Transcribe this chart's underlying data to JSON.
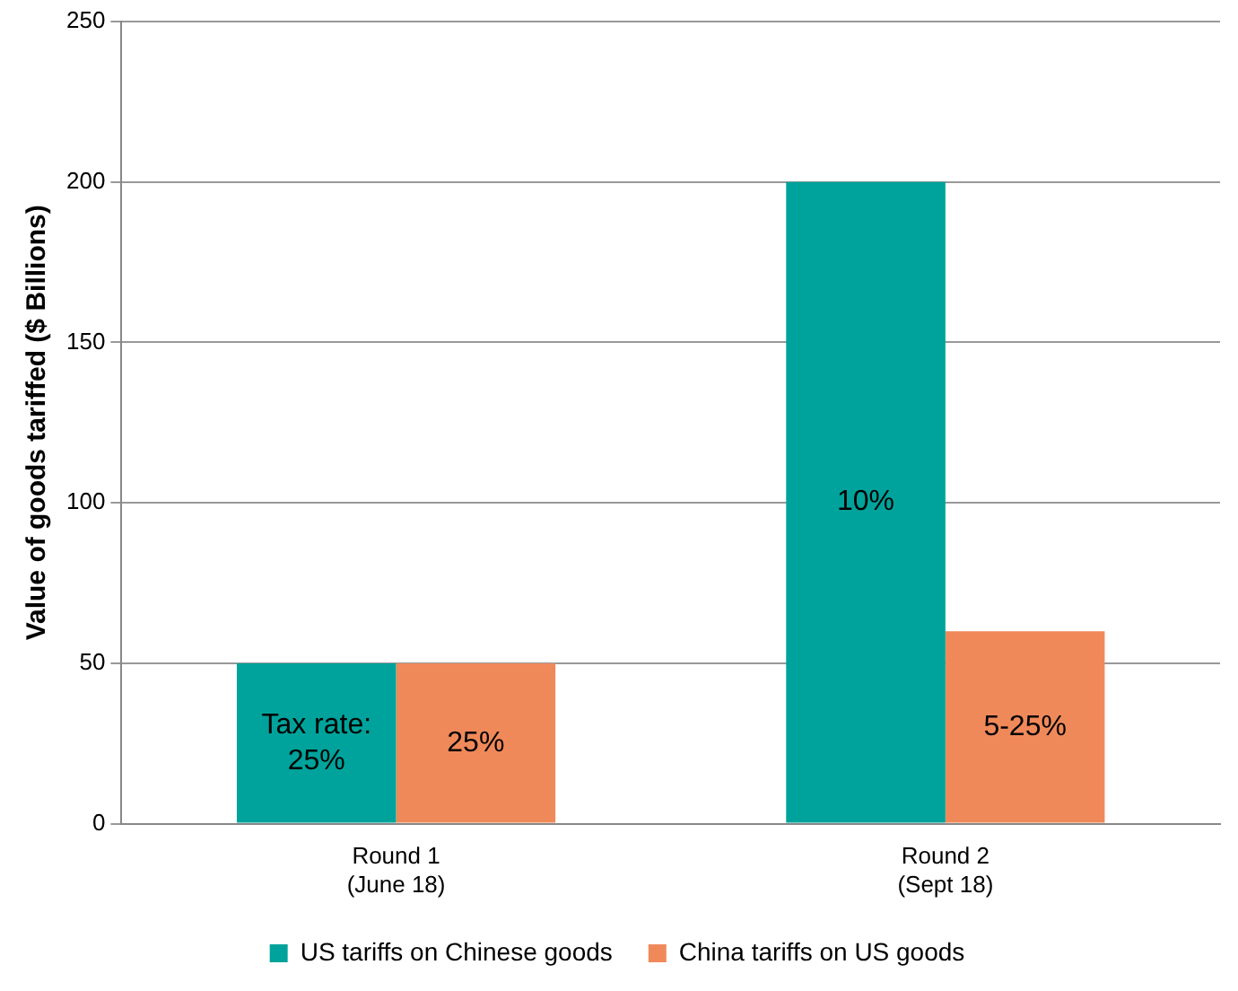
{
  "chart_data": {
    "type": "bar",
    "ylabel": "Value of goods tariffed ($ Billions)",
    "categories": [
      "Round 1\n(June 18)",
      "Round 2\n(Sept 18)"
    ],
    "series": [
      {
        "name": "US tariffs on Chinese goods",
        "color": "#00a39b",
        "values": [
          50,
          200
        ]
      },
      {
        "name": "China tariffs on US goods",
        "color": "#f0895a",
        "values": [
          50,
          60
        ]
      }
    ],
    "annotations": [
      "Tax rate:\n25%",
      "10%",
      "25%",
      "5-25%"
    ],
    "ylim": [
      0,
      250
    ],
    "yticks": [
      0,
      50,
      100,
      150,
      200,
      250
    ],
    "grid": "y",
    "legend": "bottom"
  }
}
